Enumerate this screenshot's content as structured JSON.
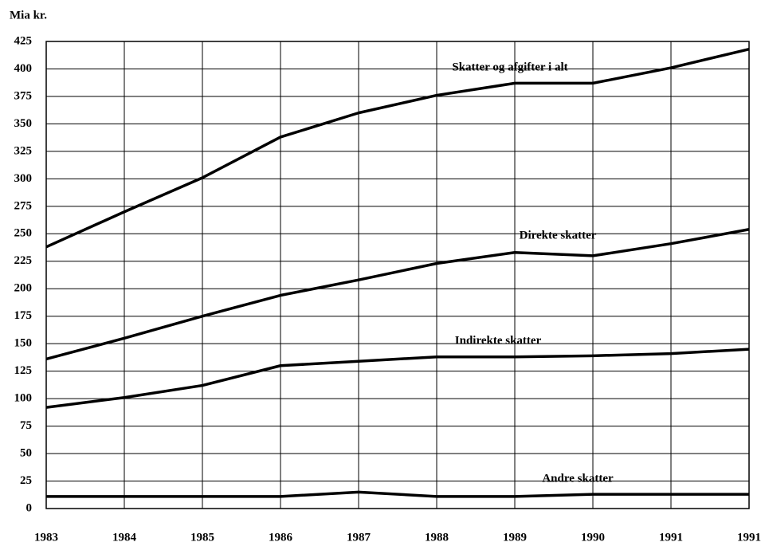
{
  "chart_data": {
    "type": "line",
    "y_axis_label": "Mia kr.",
    "categories": [
      "1983",
      "1984",
      "1985",
      "1986",
      "1987",
      "1988",
      "1989",
      "1990",
      "1991",
      "1991"
    ],
    "series": [
      {
        "name": "Skatter og afgifter i alt",
        "color": "#000000",
        "values": [
          238,
          270,
          301,
          338,
          360,
          376,
          387,
          387,
          401,
          418
        ]
      },
      {
        "name": "Direkte skatter",
        "color": "#000000",
        "values": [
          136,
          155,
          175,
          194,
          208,
          223,
          233,
          230,
          241,
          254
        ]
      },
      {
        "name": "Indirekte skatter",
        "color": "#000000",
        "values": [
          92,
          101,
          112,
          130,
          134,
          138,
          138,
          139,
          141,
          145
        ]
      },
      {
        "name": "Andre skatter",
        "color": "#000000",
        "values": [
          11,
          11,
          11,
          11,
          15,
          11,
          11,
          13,
          13,
          13
        ]
      }
    ],
    "ylim": [
      0,
      425
    ],
    "yticks": [
      0,
      25,
      50,
      75,
      100,
      125,
      150,
      175,
      200,
      225,
      250,
      275,
      300,
      325,
      350,
      375,
      400,
      425
    ],
    "grid": true
  }
}
